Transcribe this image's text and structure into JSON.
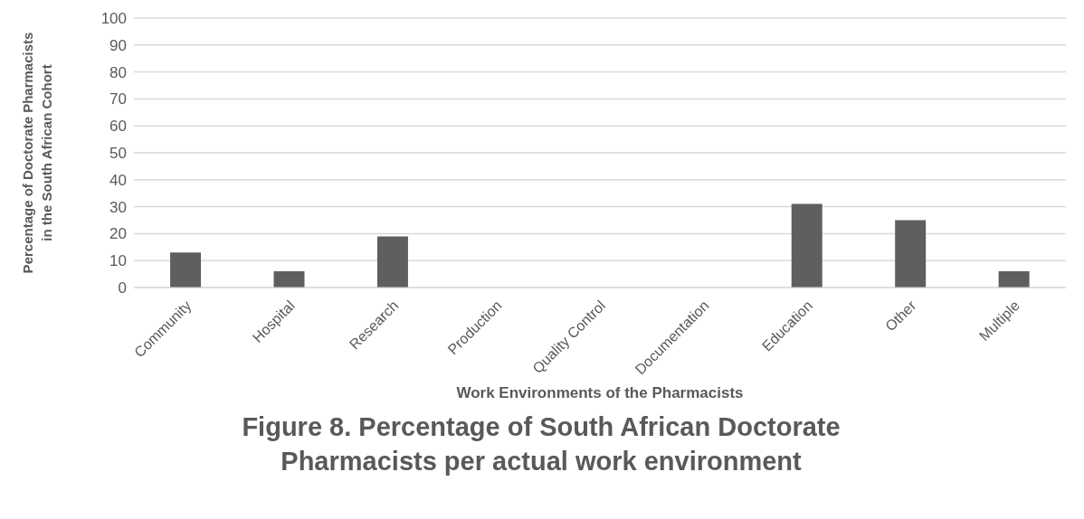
{
  "chart_data": {
    "type": "bar",
    "title": "Figure 8. Percentage of South African Doctorate Pharmacists per actual work environment",
    "xlabel": "Work Environments of the Pharmacists",
    "ylabel": "Percentage of Doctorate Pharmacists in the South African Cohort",
    "categories": [
      "Community",
      "Hospital",
      "Research",
      "Production",
      "Quality Control",
      "Documentation",
      "Education",
      "Other",
      "Multiple"
    ],
    "values": [
      13,
      6,
      19,
      0,
      0,
      0,
      31,
      25,
      6
    ],
    "color": "#5f5f5f",
    "ylim": [
      0,
      100
    ],
    "yticks": [
      0,
      10,
      20,
      30,
      40,
      50,
      60,
      70,
      80,
      90,
      100
    ],
    "grid": "y",
    "legend": false
  }
}
